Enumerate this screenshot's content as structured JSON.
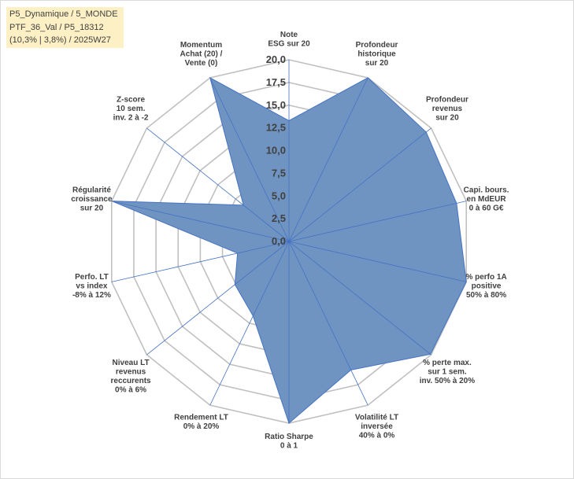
{
  "info_box": {
    "line1": "P5_Dynamique / 5_MONDE",
    "line2": "PTF_36_Val / P5_18312",
    "line3": "(10,3% | 3,8%) / 2025W27"
  },
  "colors": {
    "fill": "#7094c1",
    "stroke": "#4472c4",
    "grid": "#c0c0c0",
    "spoke": "#4472c4",
    "info_box_bg": "#fdf0c4",
    "text": "#404040"
  },
  "chart_data": {
    "type": "radar",
    "rlim": [
      0,
      20
    ],
    "r_ticks": [
      "0,0",
      "2,5",
      "5,0",
      "7,5",
      "10,0",
      "12,5",
      "15,0",
      "17,5",
      "20,0"
    ],
    "grid": true,
    "axes": [
      [
        "Note",
        "ESG sur 20"
      ],
      [
        "Profondeur",
        "historique",
        "sur 20"
      ],
      [
        "Profondeur",
        "revenus",
        "sur 20"
      ],
      [
        "Capi. bours.",
        "en MdEUR",
        "0 à 60 G€"
      ],
      [
        "% perfo 1A",
        "positive",
        "50% à 80%"
      ],
      [
        "% perte max.",
        "sur 1 sem.",
        "inv. 50% à 20%"
      ],
      [
        "Volatilité LT",
        "inversée",
        "40% à 0%"
      ],
      [
        "Ratio Sharpe",
        "0 à 1"
      ],
      [
        "Rendement LT",
        "0% à 20%"
      ],
      [
        "Niveau LT",
        "revenus",
        "reccurents",
        "0% à 6%"
      ],
      [
        "Perfo. LT",
        "vs index",
        "-8% à 12%"
      ],
      [
        "Régularité",
        "croissance",
        "sur 20"
      ],
      [
        "Z-score",
        "10 sem.",
        "inv. 2 à -2"
      ],
      [
        "Momentum",
        "Achat (20) /",
        "Vente (0)"
      ]
    ],
    "series": [
      {
        "values": [
          13.3,
          20,
          19.3,
          18.9,
          20,
          19.9,
          15.7,
          20,
          9.1,
          7.6,
          5.8,
          20,
          6.4,
          20
        ]
      }
    ]
  }
}
